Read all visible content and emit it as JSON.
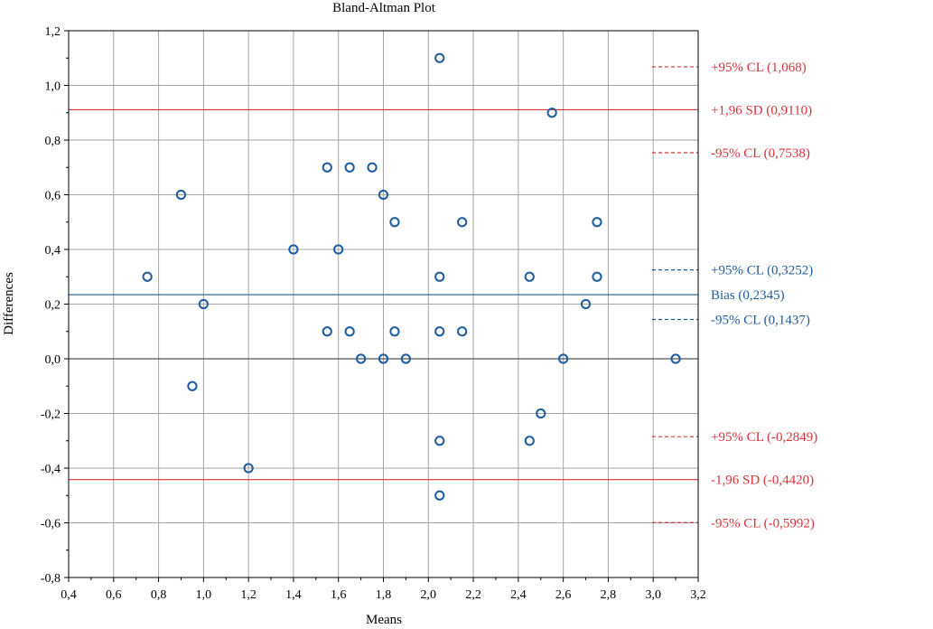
{
  "chart_data": {
    "type": "scatter",
    "title": "Bland-Altman Plot",
    "xlabel": "Means",
    "ylabel": "Differences",
    "xlim": [
      0.4,
      3.2
    ],
    "ylim": [
      -0.8,
      1.2
    ],
    "grid": true,
    "x_ticks": [
      "0,4",
      "0,6",
      "0,8",
      "1,0",
      "1,2",
      "1,4",
      "1,6",
      "1,8",
      "2,0",
      "2,2",
      "2,4",
      "2,6",
      "2,8",
      "3,0",
      "3,2"
    ],
    "y_ticks": [
      "1,2",
      "1,0",
      "0,8",
      "0,6",
      "0,4",
      "0,2",
      "0,0",
      "-0,2",
      "-0,4",
      "-0,6",
      "-0,8"
    ],
    "marker_color": "#1f5da0",
    "points": [
      {
        "x": 0.75,
        "y": 0.3
      },
      {
        "x": 0.9,
        "y": 0.6
      },
      {
        "x": 0.95,
        "y": -0.1
      },
      {
        "x": 1.0,
        "y": 0.2
      },
      {
        "x": 1.2,
        "y": -0.4
      },
      {
        "x": 1.4,
        "y": 0.4
      },
      {
        "x": 1.55,
        "y": 0.7
      },
      {
        "x": 1.55,
        "y": 0.1
      },
      {
        "x": 1.6,
        "y": 0.4
      },
      {
        "x": 1.65,
        "y": 0.7
      },
      {
        "x": 1.65,
        "y": 0.1
      },
      {
        "x": 1.7,
        "y": 0.0
      },
      {
        "x": 1.75,
        "y": 0.7
      },
      {
        "x": 1.8,
        "y": 0.6
      },
      {
        "x": 1.8,
        "y": 0.0
      },
      {
        "x": 1.85,
        "y": 0.5
      },
      {
        "x": 1.85,
        "y": 0.1
      },
      {
        "x": 1.9,
        "y": 0.0
      },
      {
        "x": 2.05,
        "y": 1.1
      },
      {
        "x": 2.05,
        "y": 0.3
      },
      {
        "x": 2.05,
        "y": 0.1
      },
      {
        "x": 2.05,
        "y": -0.3
      },
      {
        "x": 2.05,
        "y": -0.5
      },
      {
        "x": 2.15,
        "y": 0.5
      },
      {
        "x": 2.15,
        "y": 0.1
      },
      {
        "x": 2.45,
        "y": 0.3
      },
      {
        "x": 2.45,
        "y": -0.3
      },
      {
        "x": 2.5,
        "y": -0.2
      },
      {
        "x": 2.55,
        "y": 0.9
      },
      {
        "x": 2.6,
        "y": 0.0
      },
      {
        "x": 2.7,
        "y": 0.2
      },
      {
        "x": 2.75,
        "y": 0.5
      },
      {
        "x": 2.75,
        "y": 0.3
      },
      {
        "x": 3.1,
        "y": 0.0
      }
    ],
    "reference_lines": [
      {
        "value": 1.068,
        "label": "+95% CL (1,068)",
        "style": "dashed",
        "color": "#d8333a"
      },
      {
        "value": 0.911,
        "label": "+1,96 SD (0,9110)",
        "style": "solid",
        "color": "#d8333a"
      },
      {
        "value": 0.7538,
        "label": "-95% CL (0,7538)",
        "style": "dashed",
        "color": "#d8333a"
      },
      {
        "value": 0.3252,
        "label": "+95% CL (0,3252)",
        "style": "dashed",
        "color": "#1f5da0"
      },
      {
        "value": 0.2345,
        "label": "Bias (0,2345)",
        "style": "solid",
        "color": "#1f5da0"
      },
      {
        "value": 0.1437,
        "label": "-95% CL (0,1437)",
        "style": "dashed",
        "color": "#1f5da0"
      },
      {
        "value": -0.2849,
        "label": "+95% CL (-0,2849)",
        "style": "dashed",
        "color": "#d8333a"
      },
      {
        "value": -0.442,
        "label": "-1,96 SD (-0,4420)",
        "style": "solid",
        "color": "#d8333a"
      },
      {
        "value": -0.5992,
        "label": "-95% CL (-0,5992)",
        "style": "dashed",
        "color": "#d8333a"
      }
    ],
    "zero_line": {
      "value": 0.0,
      "color": "#555555"
    }
  }
}
